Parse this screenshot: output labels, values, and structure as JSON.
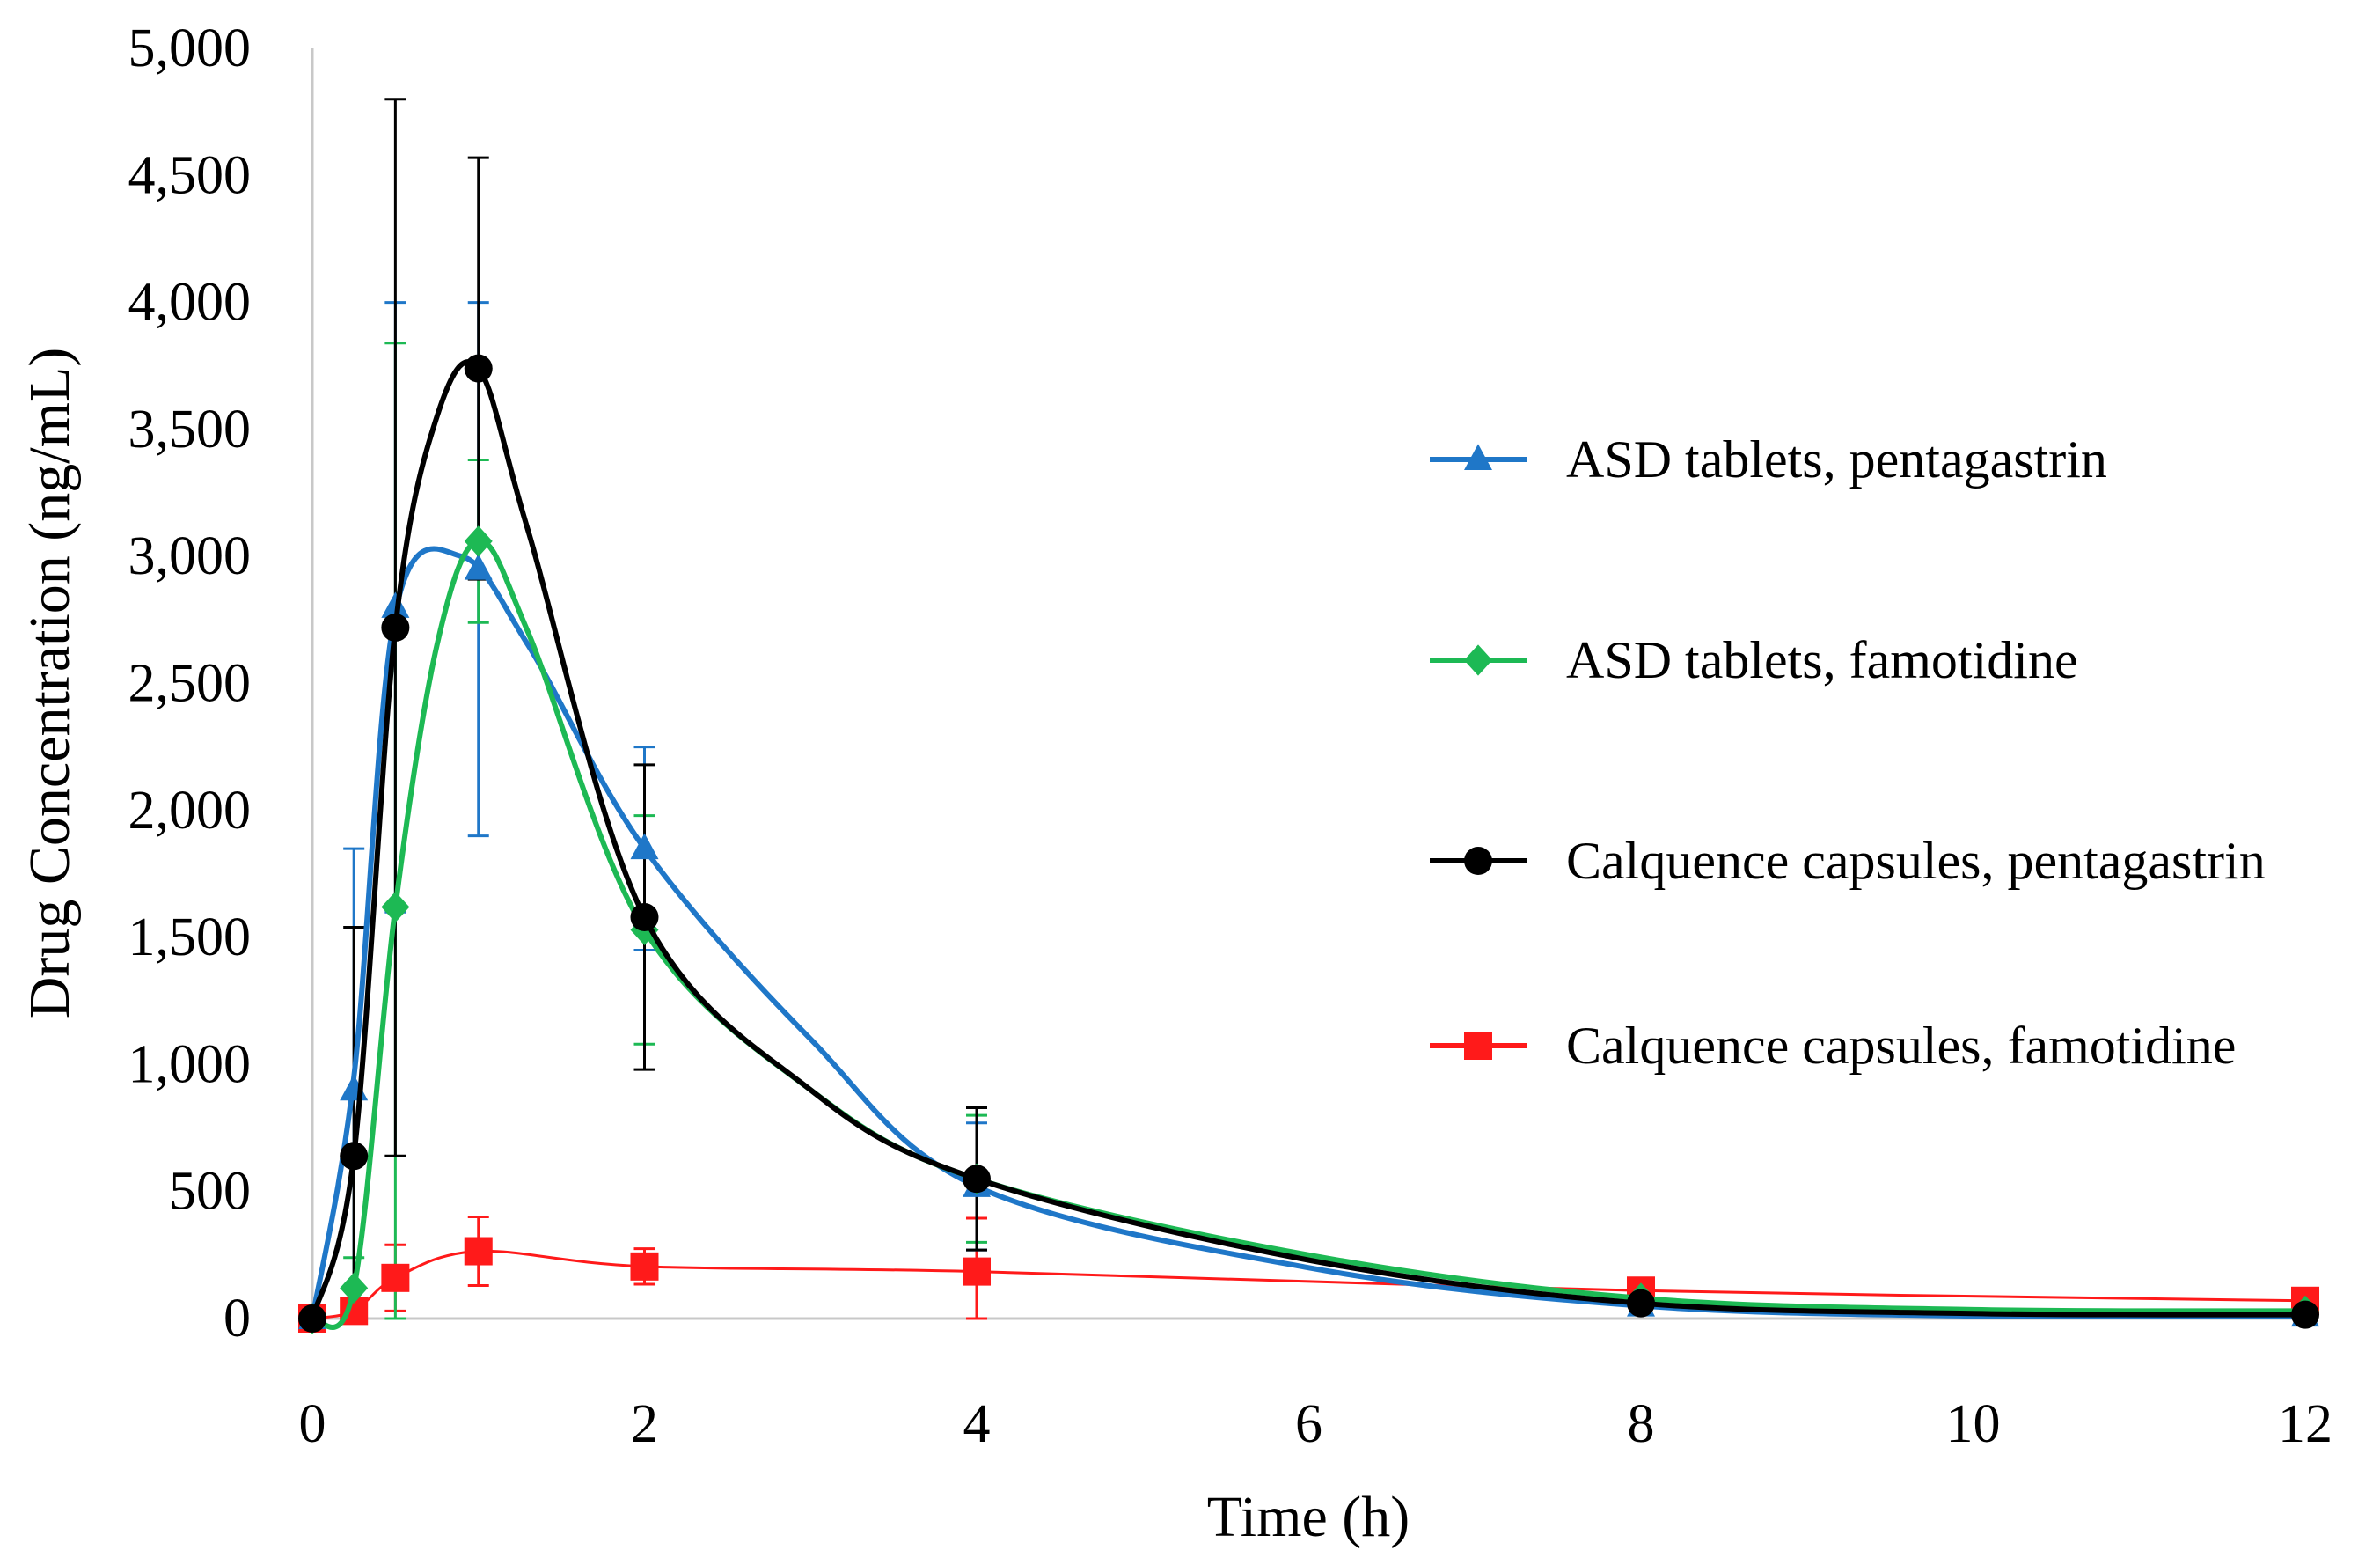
{
  "chart_data": {
    "type": "line",
    "xlabel": "Time (h)",
    "ylabel": "Drug Concentration (ng/mL)",
    "xlim": [
      0,
      12
    ],
    "ylim": [
      0,
      5000
    ],
    "xticks": [
      0,
      2,
      4,
      6,
      8,
      10,
      12
    ],
    "xtick_labels": [
      "0",
      "2",
      "4",
      "6",
      "8",
      "10",
      "12"
    ],
    "yticks": [
      0,
      500,
      1000,
      1500,
      2000,
      2500,
      3000,
      3500,
      4000,
      4500,
      5000
    ],
    "ytick_labels": [
      "0",
      "500",
      "1,000",
      "1,500",
      "2,000",
      "2,500",
      "3,000",
      "3,500",
      "4,000",
      "4,500",
      "5,000"
    ],
    "grid": false,
    "legend_position": "right",
    "x": [
      0,
      0.25,
      0.5,
      1,
      2,
      4,
      8,
      12
    ],
    "series": [
      {
        "name": "ASD tablets, pentagastrin",
        "color": "#1f77c8",
        "marker": "triangle",
        "values": [
          0,
          900,
          2800,
          2950,
          1850,
          520,
          50,
          10
        ],
        "error": [
          0,
          950,
          1200,
          1050,
          400,
          250,
          30,
          10
        ],
        "curve": [
          [
            0,
            0
          ],
          [
            0.25,
            950
          ],
          [
            0.5,
            2780
          ],
          [
            0.9,
            3000
          ],
          [
            1.3,
            2650
          ],
          [
            2,
            1850
          ],
          [
            3,
            1100
          ],
          [
            4,
            520
          ],
          [
            6,
            200
          ],
          [
            8,
            50
          ],
          [
            10,
            10
          ],
          [
            12,
            10
          ]
        ]
      },
      {
        "name": "ASD tablets, famotidine",
        "color": "#1db954",
        "marker": "diamond",
        "values": [
          0,
          120,
          1620,
          3060,
          1530,
          550,
          80,
          30
        ],
        "error": [
          0,
          120,
          2220,
          320,
          450,
          250,
          30,
          10
        ],
        "curve": [
          [
            0,
            0
          ],
          [
            0.25,
            120
          ],
          [
            0.5,
            1620
          ],
          [
            0.75,
            2650
          ],
          [
            1,
            3060
          ],
          [
            1.3,
            2700
          ],
          [
            2,
            1530
          ],
          [
            3,
            900
          ],
          [
            4,
            550
          ],
          [
            6,
            250
          ],
          [
            8,
            80
          ],
          [
            10,
            35
          ],
          [
            12,
            30
          ]
        ]
      },
      {
        "name": "Calquence capsules, pentagastrin",
        "color": "#000000",
        "marker": "circle",
        "values": [
          0,
          640,
          2720,
          3740,
          1580,
          550,
          60,
          15
        ],
        "error": [
          0,
          900,
          2080,
          830,
          600,
          280,
          30,
          10
        ],
        "curve": [
          [
            0,
            0
          ],
          [
            0.25,
            640
          ],
          [
            0.5,
            2720
          ],
          [
            0.75,
            3550
          ],
          [
            1,
            3740
          ],
          [
            1.3,
            3100
          ],
          [
            2,
            1580
          ],
          [
            3,
            900
          ],
          [
            4,
            550
          ],
          [
            6,
            230
          ],
          [
            8,
            60
          ],
          [
            10,
            20
          ],
          [
            12,
            15
          ]
        ]
      },
      {
        "name": "Calquence capsules, famotidine",
        "color": "#ff1a1a",
        "marker": "square",
        "values": [
          0,
          30,
          160,
          265,
          205,
          185,
          110,
          70
        ],
        "error": [
          0,
          20,
          130,
          135,
          70,
          210,
          30,
          15
        ],
        "curve": [
          [
            0,
            0
          ],
          [
            0.25,
            30
          ],
          [
            0.5,
            160
          ],
          [
            1,
            265
          ],
          [
            2,
            205
          ],
          [
            4,
            185
          ],
          [
            8,
            110
          ],
          [
            12,
            70
          ]
        ]
      }
    ]
  }
}
